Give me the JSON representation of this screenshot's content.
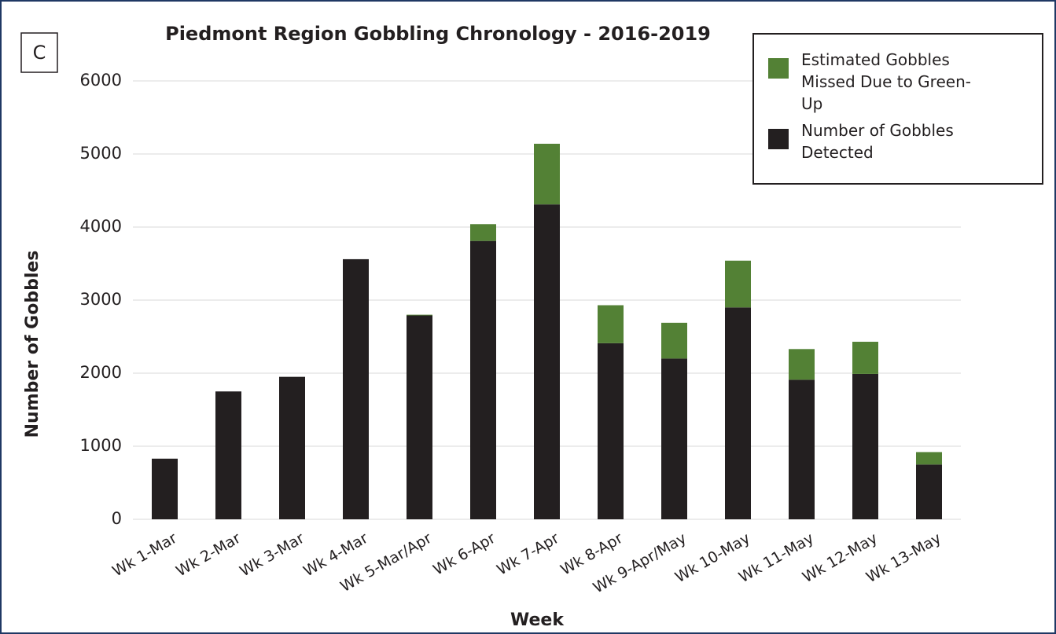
{
  "chart_data": {
    "type": "stacked_bar",
    "panel_label": "C",
    "title": "Piedmont Region Gobbling Chronology - 2016-2019",
    "x_label": "Week",
    "y_label": "Number of Gobbles",
    "categories": [
      "Wk 1-Mar",
      "Wk 2-Mar",
      "Wk 3-Mar",
      "Wk 4-Mar",
      "Wk 5-Mar/Apr",
      "Wk 6-Apr",
      "Wk 7-Apr",
      "Wk 8-Apr",
      "Wk 9-Apr/May",
      "Wk 10-May",
      "Wk 11-May",
      "Wk 12-May",
      "Wk 13-May"
    ],
    "series": [
      {
        "name": "Number of Gobbles Detected",
        "color": "#231f20",
        "values": [
          830,
          1750,
          1950,
          3560,
          2790,
          3810,
          4310,
          2410,
          2200,
          2900,
          1910,
          1990,
          750
        ]
      },
      {
        "name": "Estimated Gobbles Missed Due to Green-Up",
        "color": "#538135",
        "values": [
          0,
          0,
          0,
          0,
          10,
          230,
          830,
          520,
          490,
          640,
          420,
          440,
          170
        ]
      }
    ],
    "ylim": [
      0,
      6000
    ],
    "yticks": [
      0,
      1000,
      2000,
      3000,
      4000,
      5000,
      6000
    ],
    "grid": true,
    "legend": "upper right"
  }
}
